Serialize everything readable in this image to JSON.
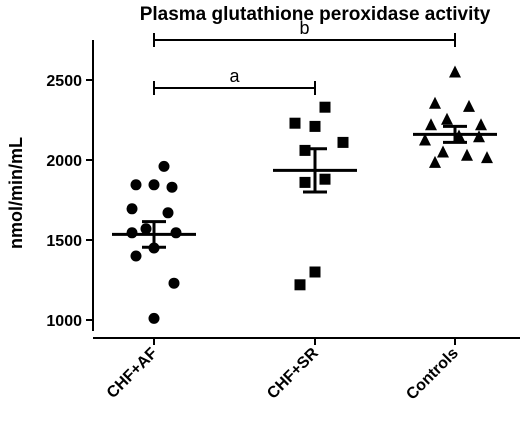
{
  "chart_data": {
    "type": "scatter",
    "title": "Plasma glutathione peroxidase activity",
    "ylabel": "nmol/min/mL",
    "xlabel": "",
    "categories": [
      "CHF+AF",
      "CHF+SR",
      "Controls"
    ],
    "ylim": [
      950,
      2750
    ],
    "yticks": [
      1000,
      1500,
      2000,
      2500
    ],
    "grid": false,
    "series": [
      {
        "category": "CHF+AF",
        "marker": "circle",
        "points": [
          1960,
          1845,
          1845,
          1830,
          1695,
          1670,
          1570,
          1545,
          1545,
          1450,
          1400,
          1230,
          1010
        ],
        "mean": 1535,
        "sem": 80
      },
      {
        "category": "CHF+SR",
        "marker": "square",
        "points": [
          2330,
          2230,
          2210,
          2110,
          2060,
          1880,
          1860,
          1300,
          1220
        ],
        "mean": 1935,
        "sem": 135
      },
      {
        "category": "Controls",
        "marker": "triangle",
        "points": [
          2550,
          2355,
          2335,
          2255,
          2220,
          2220,
          2150,
          2145,
          2125,
          2050,
          2030,
          2015,
          1985
        ],
        "mean": 2160,
        "sem": 50
      }
    ],
    "annotations": [
      {
        "label": "a",
        "from": "CHF+AF",
        "to": "CHF+SR",
        "y": 2450
      },
      {
        "label": "b",
        "from": "CHF+AF",
        "to": "Controls",
        "y": 2750
      }
    ]
  }
}
